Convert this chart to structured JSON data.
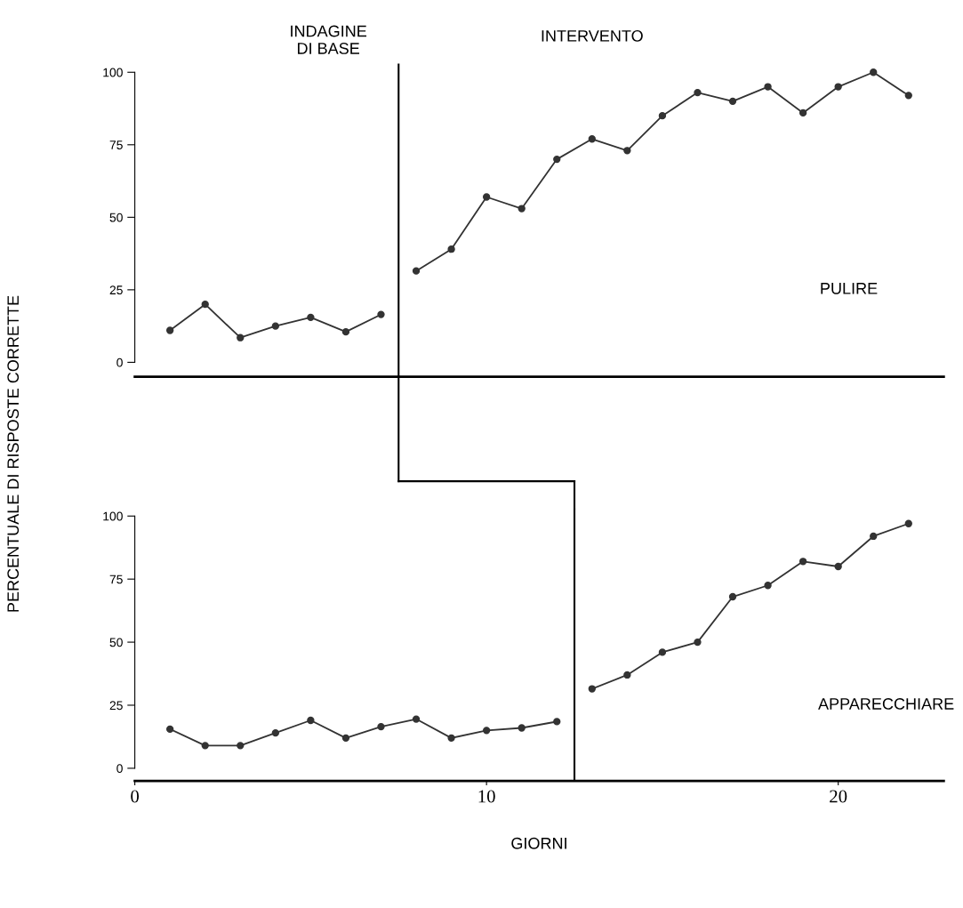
{
  "chart_data": [
    {
      "type": "line",
      "ylabel": "PERCENTUALE DI RISPOSTE CORRETTE",
      "x": [
        1,
        2,
        3,
        4,
        5,
        6,
        7,
        8,
        9,
        10,
        11,
        12,
        13,
        14,
        15,
        16,
        17,
        18,
        19,
        20,
        21,
        22
      ],
      "series": [
        {
          "color": "#333333",
          "values": [
            11,
            20,
            8.5,
            12.5,
            15.5,
            10.5,
            16.5,
            null,
            null,
            null,
            null,
            null,
            null,
            null,
            null,
            null,
            null,
            null,
            null,
            null,
            null,
            null
          ]
        },
        {
          "color": "#333333",
          "values": [
            null,
            null,
            null,
            null,
            null,
            null,
            null,
            31.5,
            39,
            57,
            53,
            70,
            77,
            73,
            85,
            93,
            90,
            95,
            86,
            95,
            100,
            92
          ]
        }
      ],
      "xlim": [
        0,
        23
      ],
      "ylim": [
        -5,
        103
      ],
      "yticks": [
        0,
        25,
        50,
        75,
        100
      ],
      "tick_labels": "y",
      "marker": "circle",
      "line_style": "solid",
      "grid": false,
      "legend": false,
      "ref_lines": [
        {
          "axis": "x",
          "value": 7.5,
          "color": "#000000"
        }
      ],
      "annotations": [
        "INDAGINE\nDI BASE",
        "INTERVENTO",
        "PULIRE"
      ]
    },
    {
      "type": "line",
      "xlabel": "GIORNI",
      "x": [
        1,
        2,
        3,
        4,
        5,
        6,
        7,
        8,
        9,
        10,
        11,
        12,
        13,
        14,
        15,
        16,
        17,
        18,
        19,
        20,
        21,
        22
      ],
      "series": [
        {
          "color": "#333333",
          "values": [
            15.5,
            9,
            9,
            14,
            19,
            12,
            16.5,
            19.5,
            12,
            15,
            16,
            18.5,
            null,
            null,
            null,
            null,
            null,
            null,
            null,
            null,
            null,
            null
          ]
        },
        {
          "color": "#333333",
          "values": [
            null,
            null,
            null,
            null,
            null,
            null,
            null,
            null,
            null,
            null,
            null,
            null,
            31.5,
            37,
            46,
            50,
            68,
            72.5,
            82,
            80,
            92,
            97
          ]
        }
      ],
      "xlim": [
        0,
        23
      ],
      "xticks": [
        0,
        10,
        20
      ],
      "ylim": [
        -5,
        103
      ],
      "yticks": [
        0,
        25,
        50,
        75,
        100
      ],
      "marker": "circle",
      "line_style": "solid",
      "grid": false,
      "legend": false,
      "ref_lines": [
        {
          "axis": "x",
          "value": 12.5,
          "color": "#000000"
        }
      ],
      "annotations": [
        "APPARECCHIARE"
      ]
    }
  ]
}
